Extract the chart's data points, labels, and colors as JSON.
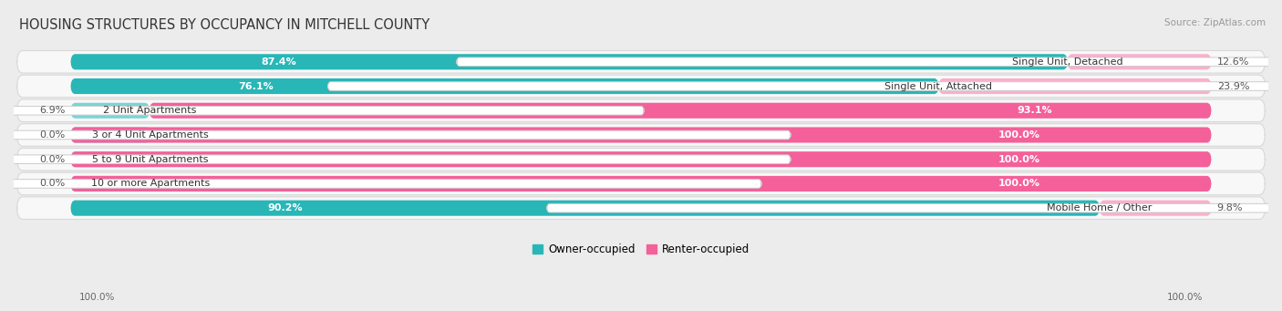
{
  "title": "HOUSING STRUCTURES BY OCCUPANCY IN MITCHELL COUNTY",
  "source": "Source: ZipAtlas.com",
  "categories": [
    "Single Unit, Detached",
    "Single Unit, Attached",
    "2 Unit Apartments",
    "3 or 4 Unit Apartments",
    "5 to 9 Unit Apartments",
    "10 or more Apartments",
    "Mobile Home / Other"
  ],
  "owner_pct": [
    87.4,
    76.1,
    6.9,
    0.0,
    0.0,
    0.0,
    90.2
  ],
  "renter_pct": [
    12.6,
    23.9,
    93.1,
    100.0,
    100.0,
    100.0,
    9.8
  ],
  "owner_color": "#29b6b6",
  "renter_color": "#f4609a",
  "owner_color_light": "#7dd4d4",
  "renter_color_light": "#f9b0cc",
  "bg_color": "#ececec",
  "row_bg_color": "#f8f8f8",
  "row_border_color": "#d8d8d8",
  "title_fontsize": 10.5,
  "source_fontsize": 7.5,
  "value_fontsize": 8,
  "label_fontsize": 8,
  "bar_height": 0.62,
  "min_owner_bar_width": 8,
  "min_renter_bar_width": 8,
  "axis_label_left": "100.0%",
  "axis_label_right": "100.0%"
}
